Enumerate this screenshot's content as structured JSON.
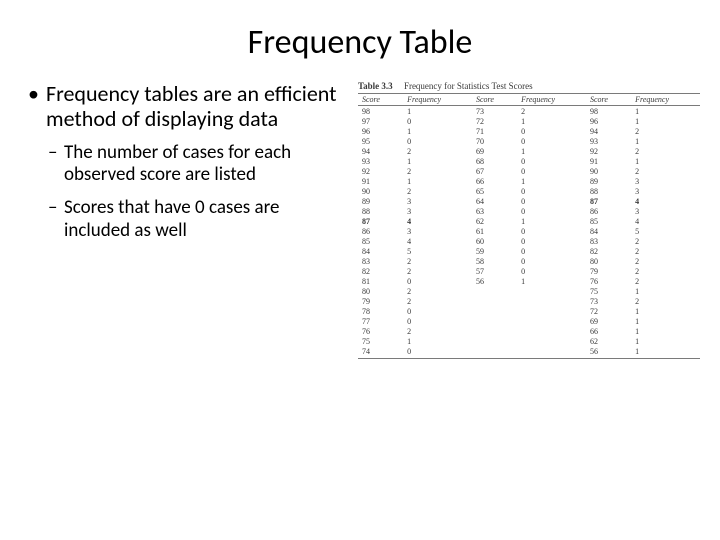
{
  "title": "Frequency Table",
  "bullets": {
    "main": "Frequency tables are an efficient method of displaying data",
    "sub1": "The number of cases for each observed score are listed",
    "sub2": " Scores that have 0 cases are included as well"
  },
  "table": {
    "caption_label": "Table 3.3",
    "caption_text": "Frequency for Statistics Test Scores",
    "headers": [
      "Score",
      "Frequency",
      "Score",
      "Frequency",
      "Score",
      "Frequency"
    ],
    "rows": [
      {
        "c": [
          "98",
          "1",
          "73",
          "2",
          "98",
          "1"
        ]
      },
      {
        "c": [
          "97",
          "0",
          "72",
          "1",
          "96",
          "1"
        ]
      },
      {
        "c": [
          "96",
          "1",
          "71",
          "0",
          "94",
          "2"
        ]
      },
      {
        "c": [
          "95",
          "0",
          "70",
          "0",
          "93",
          "1"
        ]
      },
      {
        "c": [
          "94",
          "2",
          "69",
          "1",
          "92",
          "2"
        ]
      },
      {
        "c": [
          "93",
          "1",
          "68",
          "0",
          "91",
          "1"
        ]
      },
      {
        "c": [
          "92",
          "2",
          "67",
          "0",
          "90",
          "2"
        ]
      },
      {
        "c": [
          "91",
          "1",
          "66",
          "1",
          "89",
          "3"
        ]
      },
      {
        "c": [
          "90",
          "2",
          "65",
          "0",
          "88",
          "3"
        ]
      },
      {
        "c": [
          "89",
          "3",
          "64",
          "0",
          "87",
          "4"
        ],
        "bold": [
          4,
          5
        ]
      },
      {
        "c": [
          "88",
          "3",
          "63",
          "0",
          "86",
          "3"
        ]
      },
      {
        "c": [
          "87",
          "4",
          "62",
          "1",
          "85",
          "4"
        ],
        "bold": [
          0,
          1
        ]
      },
      {
        "c": [
          "86",
          "3",
          "61",
          "0",
          "84",
          "5"
        ]
      },
      {
        "c": [
          "85",
          "4",
          "60",
          "0",
          "83",
          "2"
        ]
      },
      {
        "c": [
          "84",
          "5",
          "59",
          "0",
          "82",
          "2"
        ]
      },
      {
        "c": [
          "83",
          "2",
          "58",
          "0",
          "80",
          "2"
        ]
      },
      {
        "c": [
          "82",
          "2",
          "57",
          "0",
          "79",
          "2"
        ]
      },
      {
        "c": [
          "81",
          "0",
          "56",
          "1",
          "76",
          "2"
        ]
      },
      {
        "c": [
          "80",
          "2",
          "",
          "",
          "75",
          "1"
        ]
      },
      {
        "c": [
          "79",
          "2",
          "",
          "",
          "73",
          "2"
        ]
      },
      {
        "c": [
          "78",
          "0",
          "",
          "",
          "72",
          "1"
        ]
      },
      {
        "c": [
          "77",
          "0",
          "",
          "",
          "69",
          "1"
        ]
      },
      {
        "c": [
          "76",
          "2",
          "",
          "",
          "66",
          "1"
        ]
      },
      {
        "c": [
          "75",
          "1",
          "",
          "",
          "62",
          "1"
        ]
      },
      {
        "c": [
          "74",
          "0",
          "",
          "",
          "56",
          "1"
        ]
      }
    ]
  }
}
